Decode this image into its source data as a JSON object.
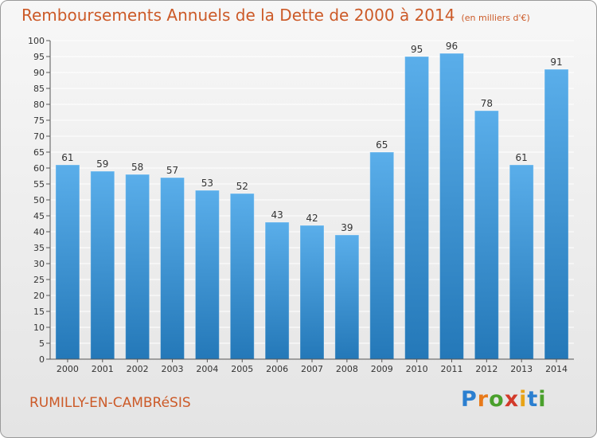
{
  "header": {
    "title": "Remboursements Annuels de la Dette de 2000 à 2014",
    "unit": "(en milliers d'€)"
  },
  "footer": {
    "commune": "RUMILLY-EN-CAMBRéSIS"
  },
  "logo": {
    "letters": [
      "P",
      "r",
      "o",
      "x",
      "i",
      "t",
      "i"
    ],
    "colors": [
      "#2b7fd0",
      "#e87a1a",
      "#4aa02c",
      "#d23a2a",
      "#e8a317",
      "#2b7fd0",
      "#4aa02c"
    ]
  },
  "chart_data": {
    "type": "bar",
    "categories": [
      "2000",
      "2001",
      "2002",
      "2003",
      "2004",
      "2005",
      "2006",
      "2007",
      "2008",
      "2009",
      "2010",
      "2011",
      "2012",
      "2013",
      "2014"
    ],
    "values": [
      61,
      59,
      58,
      57,
      53,
      52,
      43,
      42,
      39,
      65,
      95,
      96,
      78,
      61,
      91
    ],
    "title": "Remboursements Annuels de la Dette de 2000 à 2014",
    "xlabel": "",
    "ylabel": "",
    "ylim": [
      0,
      100
    ],
    "yticks": [
      0,
      5,
      10,
      15,
      20,
      25,
      30,
      35,
      40,
      45,
      50,
      55,
      60,
      65,
      70,
      75,
      80,
      85,
      90,
      95,
      100
    ],
    "grid": true,
    "data_labels": true,
    "colors": {
      "bar_light": "#5aaeea",
      "bar_dark": "#2478b8",
      "grid": "#ffffff",
      "axis": "#555555"
    }
  }
}
